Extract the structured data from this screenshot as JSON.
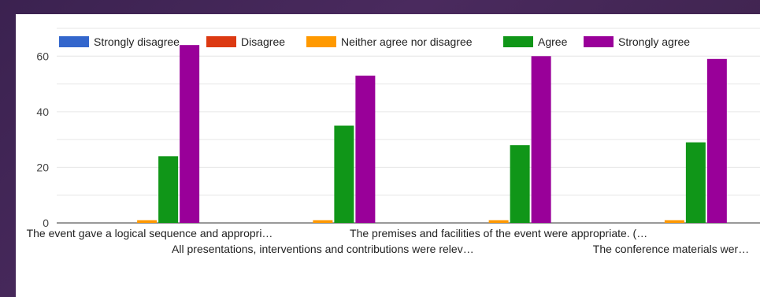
{
  "chart_data": {
    "type": "bar",
    "categories": [
      "The event gave a logical sequence and appropri…",
      "All presentations, interventions and contributions were relev…",
      "The premises and facilities of the event were appropriate. (…",
      "The conference materials wer…"
    ],
    "series": [
      {
        "name": "Strongly disagree",
        "color": "#3366cc",
        "values": [
          0,
          0,
          0,
          0
        ]
      },
      {
        "name": "Disagree",
        "color": "#dc3912",
        "values": [
          0,
          0,
          0,
          0
        ]
      },
      {
        "name": "Neither agree nor disagree",
        "color": "#ff9900",
        "values": [
          1,
          1,
          1,
          1
        ]
      },
      {
        "name": "Agree",
        "color": "#109618",
        "values": [
          24,
          35,
          28,
          29
        ]
      },
      {
        "name": "Strongly agree",
        "color": "#990099",
        "values": [
          64,
          53,
          60,
          59
        ]
      }
    ],
    "yticks": [
      0,
      20,
      40,
      60
    ],
    "ylim": [
      0,
      70
    ],
    "legend_position": "top",
    "grid": true
  }
}
